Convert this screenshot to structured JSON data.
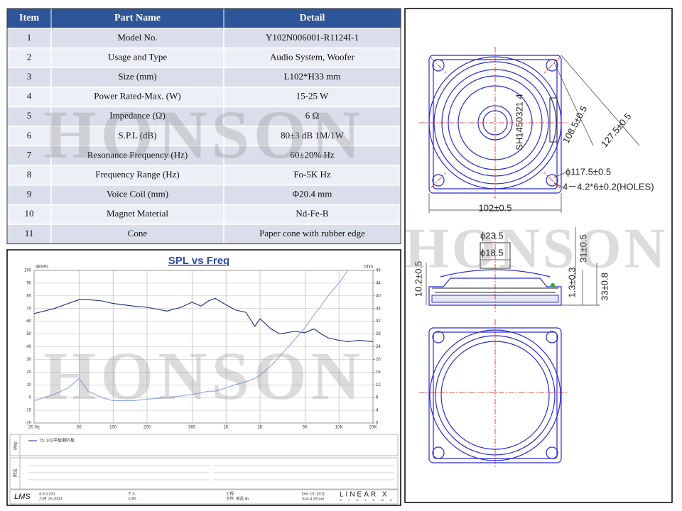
{
  "watermark": "HONSON",
  "table": {
    "header": [
      "Item",
      "Part Name",
      "Detail"
    ],
    "rows": [
      [
        "1",
        "Model No.",
        "Y102N006001-R1124I-1"
      ],
      [
        "2",
        "Usage and Type",
        "Audio System, Woofer"
      ],
      [
        "3",
        "Size (mm)",
        "L102*H33 mm"
      ],
      [
        "4",
        "Power Rated-Max. (W)",
        "15-25 W"
      ],
      [
        "5",
        "Impedance (Ω)",
        "6 Ω"
      ],
      [
        "6",
        "S.P.L (dB)",
        "80±3 dB   1M/1W"
      ],
      [
        "7",
        "Resonance Frequency (Hz)",
        "60±20% Hz"
      ],
      [
        "8",
        "Frequency Range (Hz)",
        "Fo-5K Hz"
      ],
      [
        "9",
        "Voice Coil (mm)",
        "Φ20.4 mm"
      ],
      [
        "10",
        "Magnet Material",
        "Nd-Fe-B"
      ],
      [
        "11",
        "Cone",
        "Paper cone with rubber edge"
      ]
    ]
  },
  "chart_data": {
    "type": "line",
    "title": "SPL vs Freq",
    "ylabel": "dBSPL",
    "y2label": "Ohm",
    "xscale": "log",
    "grid": true,
    "xlim": [
      20,
      20000
    ],
    "xticks": [
      {
        "value": 20,
        "label": "20 Hz"
      },
      50,
      100,
      200,
      500,
      {
        "value": 1000,
        "label": "1K"
      },
      {
        "value": 2000,
        "label": "2K"
      },
      {
        "value": 5000,
        "label": "5K"
      },
      {
        "value": 10000,
        "label": "10K"
      },
      {
        "value": 20000,
        "label": "20K"
      }
    ],
    "ylim": [
      -20,
      100
    ],
    "yticks": [
      -20,
      -10,
      0,
      10,
      20,
      30,
      40,
      50,
      60,
      70,
      80,
      90,
      100
    ],
    "y2lim": [
      0,
      48
    ],
    "y2ticks": [
      0,
      4,
      8,
      12,
      16,
      20,
      24,
      28,
      32,
      36,
      40,
      44,
      48
    ],
    "x": [
      20,
      30,
      40,
      50,
      60,
      80,
      100,
      150,
      200,
      300,
      400,
      500,
      600,
      700,
      800,
      1000,
      1200,
      1500,
      1800,
      2000,
      2500,
      3000,
      4000,
      5000,
      6000,
      7000,
      8000,
      10000,
      12000,
      15000,
      20000
    ],
    "series": [
      {
        "name": "75: 102平板喇叭板",
        "color": "#1a2a7a",
        "values": [
          66,
          70,
          74,
          77,
          77,
          76,
          74,
          72,
          71,
          68,
          71,
          75,
          72,
          76,
          78,
          73,
          69,
          67,
          56,
          62,
          54,
          50,
          52,
          51,
          54,
          50,
          47,
          45,
          44,
          45,
          44
        ]
      },
      {
        "color": "#8fa6e0",
        "axis": "y2",
        "values": [
          7,
          9,
          11,
          14,
          10,
          8,
          7,
          7,
          7.5,
          8,
          8.5,
          9,
          9.5,
          10,
          10,
          11,
          12,
          13,
          14,
          15,
          18,
          21,
          26,
          30,
          34,
          37,
          40,
          44,
          48,
          null,
          null
        ]
      }
    ],
    "logo": "LMS",
    "side_labels": [
      "Map",
      "附注"
    ],
    "footer": [
      "4.5.0.331",
      "六月 15.2003",
      "个人:",
      "公司:",
      "工程:",
      "文件: 低品.lib",
      "Dec 10, 2011",
      "Sun 4:28 am",
      "LINEAR X",
      "S Y S T E M S"
    ]
  },
  "drawing": {
    "serial": "SH1450321 4",
    "dimensions": [
      "108.5±0.5",
      "127.5±0.5",
      "ϕ117.5±0.5",
      "4－4.2*6±0.2(HOLES)",
      "102±0.5",
      "ϕ23.5",
      "ϕ18.5",
      "10.2±0.5",
      "31±0.5",
      "1.3±0.3",
      "33±0.8"
    ]
  }
}
